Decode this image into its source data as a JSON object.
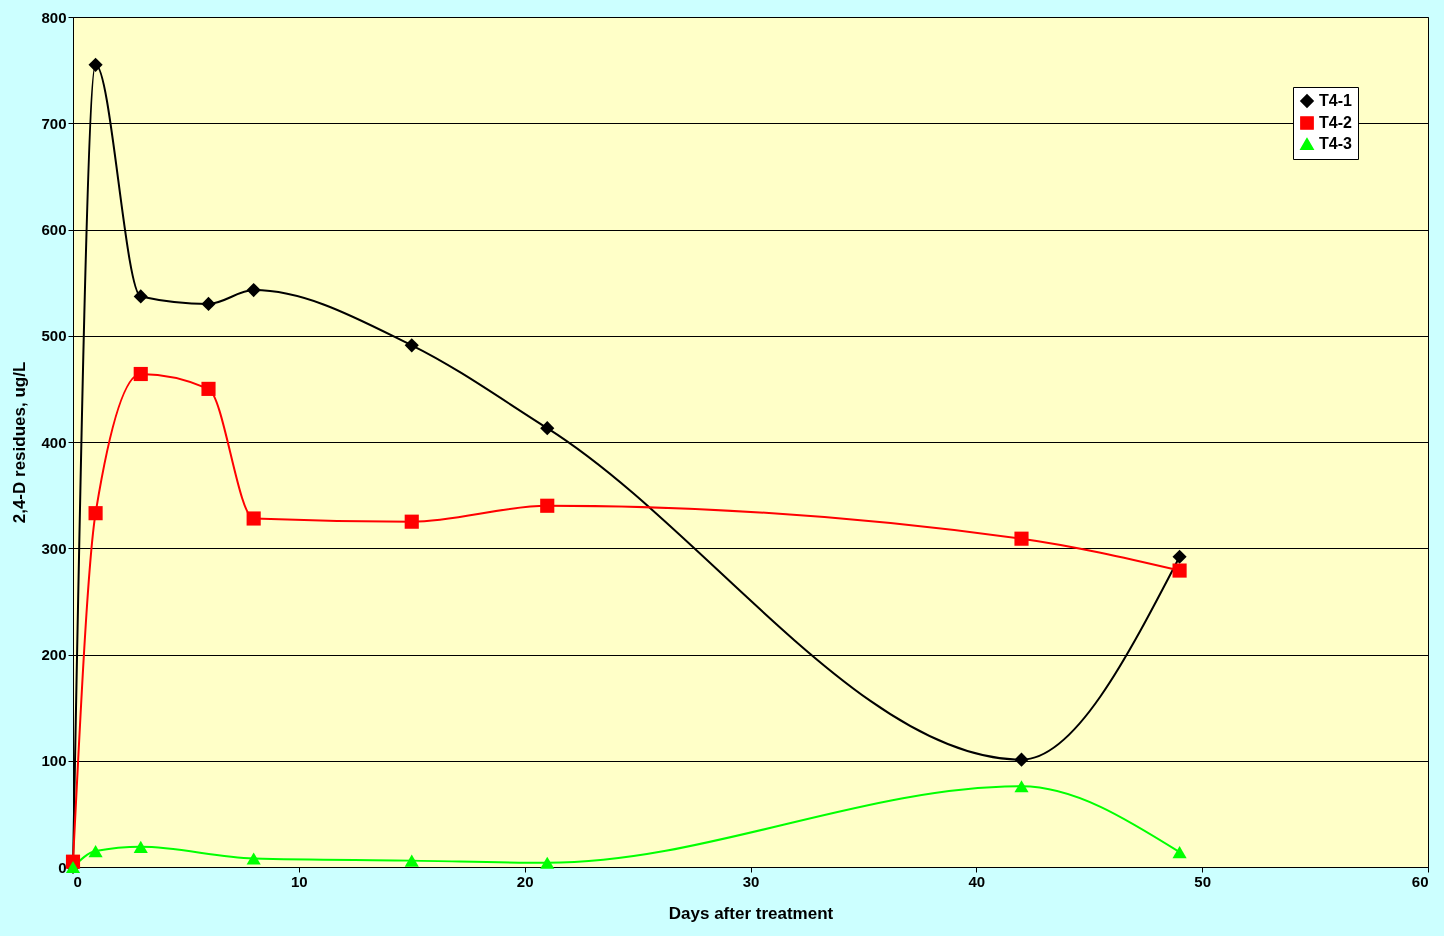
{
  "chart_data": {
    "type": "line",
    "xlabel": "Days after treatment",
    "ylabel": "2,4-D residues, ug/L",
    "x": [
      0,
      1,
      3,
      6,
      8,
      15,
      21,
      42,
      49
    ],
    "series": [
      {
        "name": "T4-1",
        "color": "#000000",
        "marker": "diamond",
        "values": [
          0,
          755,
          537,
          530,
          543,
          491,
          413,
          101,
          292
        ]
      },
      {
        "name": "T4-2",
        "color": "#ff0000",
        "marker": "square",
        "values": [
          5,
          333,
          464,
          450,
          328,
          325,
          340,
          309,
          279
        ]
      },
      {
        "name": "T4-3",
        "color": "#00ff00",
        "marker": "triangle",
        "x": [
          0,
          1,
          3,
          8,
          15,
          21,
          42,
          49
        ],
        "values": [
          0,
          15,
          19,
          8,
          6,
          4,
          76,
          14
        ]
      }
    ],
    "xlim": [
      0,
      60
    ],
    "xticks": [
      0,
      10,
      20,
      30,
      40,
      50,
      60
    ],
    "ylim": [
      0,
      800
    ],
    "yticks": [
      0,
      100,
      200,
      300,
      400,
      500,
      600,
      700,
      800
    ],
    "grid": "y",
    "legend": "top right",
    "line_style": "solid"
  }
}
